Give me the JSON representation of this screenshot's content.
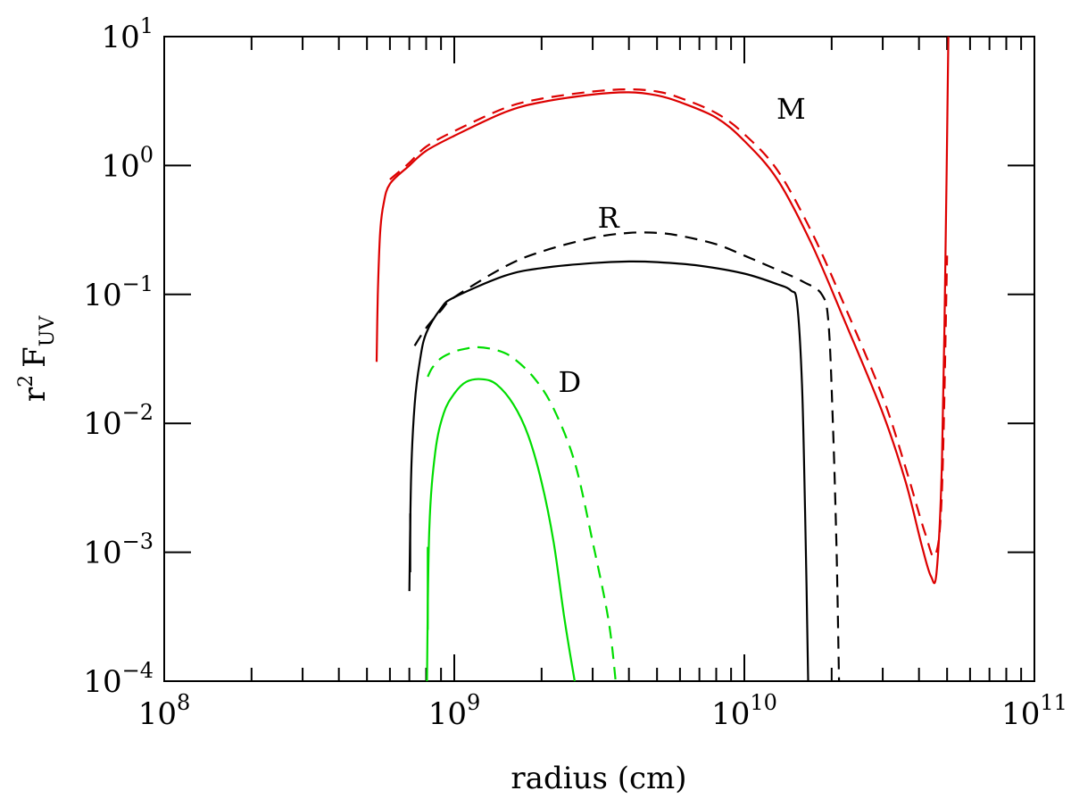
{
  "chart_data": {
    "type": "line",
    "title": "",
    "xlabel": "radius (cm)",
    "ylabel_base": "r",
    "ylabel_sup": "2",
    "ylabel_main": "F",
    "ylabel_sub": "UV",
    "xscale": "log",
    "yscale": "log",
    "xlim": [
      100000000.0,
      100000000000.0
    ],
    "ylim": [
      0.0001,
      10
    ],
    "x_ticks": [
      {
        "value": 100000000.0,
        "base": "10",
        "exp": "8"
      },
      {
        "value": 1000000000.0,
        "base": "10",
        "exp": "9"
      },
      {
        "value": 10000000000.0,
        "base": "10",
        "exp": "10"
      },
      {
        "value": 100000000000.0,
        "base": "10",
        "exp": "11"
      }
    ],
    "y_ticks": [
      {
        "value": 0.0001,
        "base": "10",
        "exp": "−4"
      },
      {
        "value": 0.001,
        "base": "10",
        "exp": "−3"
      },
      {
        "value": 0.01,
        "base": "10",
        "exp": "−2"
      },
      {
        "value": 0.1,
        "base": "10",
        "exp": "−1"
      },
      {
        "value": 1,
        "base": "10",
        "exp": "0"
      },
      {
        "value": 10,
        "base": "10",
        "exp": "1"
      }
    ],
    "series": [
      {
        "name": "M-solid",
        "label": "M",
        "color": "#dd0000",
        "dash": false,
        "x": [
          540000000.0,
          545000000.0,
          555000000.0,
          570000000.0,
          600000000.0,
          700000000.0,
          800000000.0,
          1000000000.0,
          1500000000.0,
          2000000000.0,
          3000000000.0,
          4000000000.0,
          5000000000.0,
          6000000000.0,
          8000000000.0,
          10000000000.0,
          13000000000.0,
          17000000000.0,
          22000000000.0,
          30000000000.0,
          36000000000.0,
          41000000000.0,
          44000000000.0,
          46000000000.0,
          48000000000.0,
          49500000000.0,
          50500000000.0
        ],
        "y": [
          0.03,
          0.1,
          0.3,
          0.5,
          0.72,
          1.0,
          1.3,
          1.7,
          2.6,
          3.1,
          3.55,
          3.7,
          3.5,
          3.1,
          2.35,
          1.55,
          0.78,
          0.25,
          0.065,
          0.012,
          0.0035,
          0.0011,
          0.00065,
          0.0007,
          0.005,
          0.3,
          10
        ]
      },
      {
        "name": "M-dashed",
        "label": "M",
        "color": "#dd0000",
        "dash": true,
        "x": [
          600000000.0,
          700000000.0,
          800000000.0,
          1000000000.0,
          1500000000.0,
          2000000000.0,
          3000000000.0,
          4000000000.0,
          5000000000.0,
          6000000000.0,
          8000000000.0,
          10000000000.0,
          13000000000.0,
          17000000000.0,
          22000000000.0,
          30000000000.0,
          36000000000.0,
          42000000000.0,
          45500000000.0,
          48000000000.0,
          50000000000.0
        ],
        "y": [
          0.78,
          1.05,
          1.4,
          1.85,
          2.8,
          3.3,
          3.75,
          3.9,
          3.75,
          3.35,
          2.55,
          1.75,
          0.92,
          0.31,
          0.085,
          0.016,
          0.0045,
          0.0014,
          0.00095,
          0.003,
          0.2
        ]
      },
      {
        "name": "R-solid",
        "label": "R",
        "color": "#000000",
        "dash": false,
        "x": [
          700000000.0,
          710000000.0,
          730000000.0,
          760000000.0,
          800000000.0,
          900000000.0,
          1000000000.0,
          1500000000.0,
          2000000000.0,
          3000000000.0,
          4000000000.0,
          5000000000.0,
          7000000000.0,
          10000000000.0,
          13000000000.0,
          14500000000.0,
          15200000000.0,
          15800000000.0,
          16200000000.0,
          16600000000.0
        ],
        "y": [
          0.0005,
          0.004,
          0.014,
          0.03,
          0.05,
          0.078,
          0.095,
          0.14,
          0.16,
          0.175,
          0.18,
          0.178,
          0.167,
          0.145,
          0.12,
          0.107,
          0.085,
          0.02,
          0.002,
          0.0001
        ]
      },
      {
        "name": "R-dashed",
        "label": "R",
        "color": "#000000",
        "dash": true,
        "x": [
          730000000.0,
          800000000.0,
          900000000.0,
          1000000000.0,
          1500000000.0,
          2000000000.0,
          3000000000.0,
          4000000000.0,
          5000000000.0,
          6000000000.0,
          8000000000.0,
          10000000000.0,
          13000000000.0,
          16000000000.0,
          18500000000.0,
          19500000000.0,
          20200000000.0,
          20800000000.0,
          21200000000.0
        ],
        "y": [
          0.04,
          0.055,
          0.075,
          0.095,
          0.165,
          0.215,
          0.275,
          0.3,
          0.3,
          0.285,
          0.245,
          0.2,
          0.155,
          0.125,
          0.1,
          0.06,
          0.01,
          0.001,
          0.0001
        ]
      },
      {
        "name": "D-solid",
        "label": "D",
        "color": "#00dd00",
        "dash": false,
        "x": [
          805000000.0,
          820000000.0,
          860000000.0,
          920000000.0,
          1000000000.0,
          1100000000.0,
          1250000000.0,
          1400000000.0,
          1600000000.0,
          1800000000.0,
          2000000000.0,
          2200000000.0,
          2400000000.0,
          2600000000.0
        ],
        "y": [
          0.0001,
          0.0015,
          0.006,
          0.012,
          0.017,
          0.021,
          0.022,
          0.02,
          0.014,
          0.008,
          0.0035,
          0.0012,
          0.0003,
          0.0001
        ]
      },
      {
        "name": "D-dashed",
        "label": "D",
        "color": "#00dd00",
        "dash": true,
        "x": [
          810000000.0,
          840000000.0,
          900000000.0,
          1000000000.0,
          1100000000.0,
          1200000000.0,
          1400000000.0,
          1600000000.0,
          1900000000.0,
          2200000000.0,
          2600000000.0,
          3000000000.0,
          3400000000.0,
          3600000000.0
        ],
        "y": [
          0.023,
          0.027,
          0.032,
          0.036,
          0.038,
          0.039,
          0.037,
          0.032,
          0.022,
          0.013,
          0.005,
          0.0012,
          0.0003,
          0.0001
        ]
      }
    ],
    "annotations": [
      {
        "text": "M",
        "x": 14500000000.0,
        "y": 2.3
      },
      {
        "text": "R",
        "x": 3400000000.0,
        "y": 0.33
      },
      {
        "text": "D",
        "x": 2500000000.0,
        "y": 0.0175
      }
    ],
    "short_vertical_segments": [
      {
        "series_color": "#000000",
        "x": 705000000.0,
        "y_from": 0.0007,
        "y_to": 0.002
      },
      {
        "series_color": "#00dd00",
        "x": 810000000.0,
        "y_from": 0.00025,
        "y_to": 0.0011
      }
    ],
    "grid": false,
    "legend": "none"
  }
}
